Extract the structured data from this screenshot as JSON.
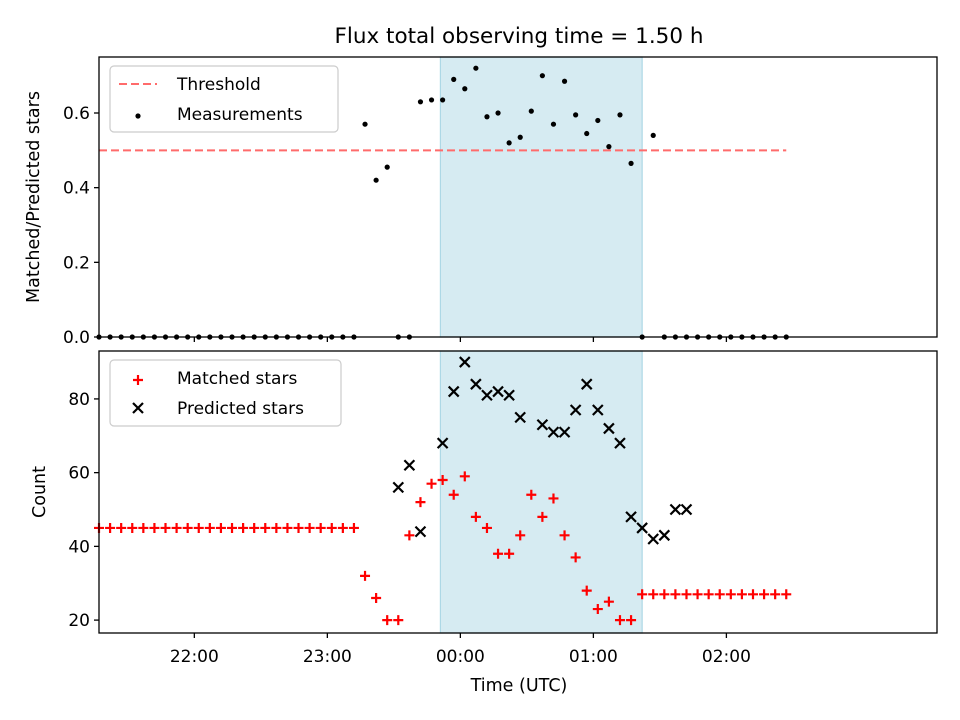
{
  "figure": {
    "title": "Flux total observing time = 1.50 h",
    "xlabel": "Time (UTC)",
    "x_tick_labels": [
      "22:00",
      "23:00",
      "00:00",
      "01:00",
      "02:00"
    ],
    "highlight_span": {
      "from": "-00:09",
      "to": "01:22",
      "color": "#add8e6"
    }
  },
  "chart_data": [
    {
      "type": "scatter",
      "ylabel": "Matched/Predicted stars",
      "xlim": [
        -163,
        215
      ],
      "ylim": [
        0,
        0.75
      ],
      "y_ticks": [
        0.0,
        0.2,
        0.4,
        0.6
      ],
      "y_tick_labels": [
        "0.0",
        "0.2",
        "0.4",
        "0.6"
      ],
      "x_tick_values_min": [
        -120,
        -60,
        0,
        60,
        120
      ],
      "legend": {
        "placement": "upper-left",
        "entries": [
          "Threshold",
          "Measurements"
        ]
      },
      "threshold": {
        "name": "Threshold",
        "y": 0.5,
        "x": [
          -163,
          147
        ],
        "color": "#ff6b6b",
        "style": "dashed"
      },
      "series": [
        {
          "name": "Measurements",
          "color": "#000000",
          "marker": "dot",
          "x": [
            -163,
            -158,
            -153,
            -148,
            -143,
            -138,
            -133,
            -128,
            -123,
            -118,
            -113,
            -108,
            -103,
            -98,
            -93,
            -88,
            -83,
            -78,
            -73,
            -68,
            -63,
            -58,
            -53,
            -48,
            -43,
            -38,
            -33,
            -28,
            -23,
            -18,
            -13,
            -8,
            -3,
            2,
            7,
            12,
            17,
            22,
            27,
            32,
            37,
            42,
            47,
            52,
            57,
            62,
            67,
            72,
            77,
            82,
            87,
            92,
            97,
            102,
            107,
            112,
            117,
            122,
            127,
            132,
            137,
            142,
            147
          ],
          "y": [
            0,
            0,
            0,
            0,
            0,
            0,
            0,
            0,
            0,
            0,
            0,
            0,
            0,
            0,
            0,
            0,
            0,
            0,
            0,
            0,
            0,
            0,
            0,
            0,
            0.57,
            0.42,
            0.455,
            0,
            0,
            0.63,
            0.635,
            0.635,
            0.69,
            0.665,
            0.72,
            0.59,
            0.6,
            0.52,
            0.535,
            0.605,
            0.7,
            0.57,
            0.685,
            0.595,
            0.545,
            0.58,
            0.51,
            0.595,
            0.465,
            0,
            0.54,
            0,
            0,
            0,
            0,
            0,
            0,
            0,
            0,
            0,
            0,
            0,
            0
          ]
        }
      ]
    },
    {
      "type": "scatter",
      "ylabel": "Count",
      "xlabel": "Time (UTC)",
      "xlim": [
        -163,
        215
      ],
      "ylim": [
        16.5,
        93
      ],
      "y_ticks": [
        20,
        40,
        60,
        80
      ],
      "y_tick_labels": [
        "20",
        "40",
        "60",
        "80"
      ],
      "x_tick_values_min": [
        -120,
        -60,
        0,
        60,
        120
      ],
      "legend": {
        "placement": "upper-left",
        "entries": [
          "Matched stars",
          "Predicted stars"
        ]
      },
      "series": [
        {
          "name": "Matched stars",
          "color": "#ff0000",
          "marker": "plus",
          "x": [
            -163,
            -158,
            -153,
            -148,
            -143,
            -138,
            -133,
            -128,
            -123,
            -118,
            -113,
            -108,
            -103,
            -98,
            -93,
            -88,
            -83,
            -78,
            -73,
            -68,
            -63,
            -58,
            -53,
            -48,
            -43,
            -38,
            -33,
            -28,
            -23,
            -18,
            -13,
            -8,
            -3,
            2,
            7,
            12,
            17,
            22,
            27,
            32,
            37,
            42,
            47,
            52,
            57,
            62,
            67,
            72,
            77,
            82,
            87,
            92,
            97,
            102,
            107,
            112,
            117,
            122,
            127,
            132,
            137,
            142,
            147
          ],
          "y": [
            45,
            45,
            45,
            45,
            45,
            45,
            45,
            45,
            45,
            45,
            45,
            45,
            45,
            45,
            45,
            45,
            45,
            45,
            45,
            45,
            45,
            45,
            45,
            45,
            32,
            26,
            20,
            20,
            43,
            52,
            57,
            58,
            54,
            59,
            48,
            45,
            38,
            38,
            43,
            54,
            48,
            53,
            43,
            37,
            28,
            23,
            25,
            20,
            20,
            27,
            27,
            27,
            27,
            27,
            27,
            27,
            27,
            27,
            27,
            27,
            27,
            27,
            27
          ]
        },
        {
          "name": "Predicted stars",
          "color": "#000000",
          "marker": "x",
          "x": [
            -28,
            -23,
            -18,
            -8,
            -3,
            2,
            7,
            12,
            17,
            22,
            27,
            37,
            42,
            47,
            52,
            57,
            62,
            67,
            72,
            77,
            82,
            87,
            92,
            97,
            102
          ],
          "y": [
            56,
            62,
            44,
            68,
            82,
            90,
            84,
            81,
            82,
            81,
            75,
            73,
            71,
            71,
            77,
            84,
            77,
            72,
            68,
            48,
            45,
            42,
            43,
            50,
            50
          ]
        }
      ]
    }
  ]
}
